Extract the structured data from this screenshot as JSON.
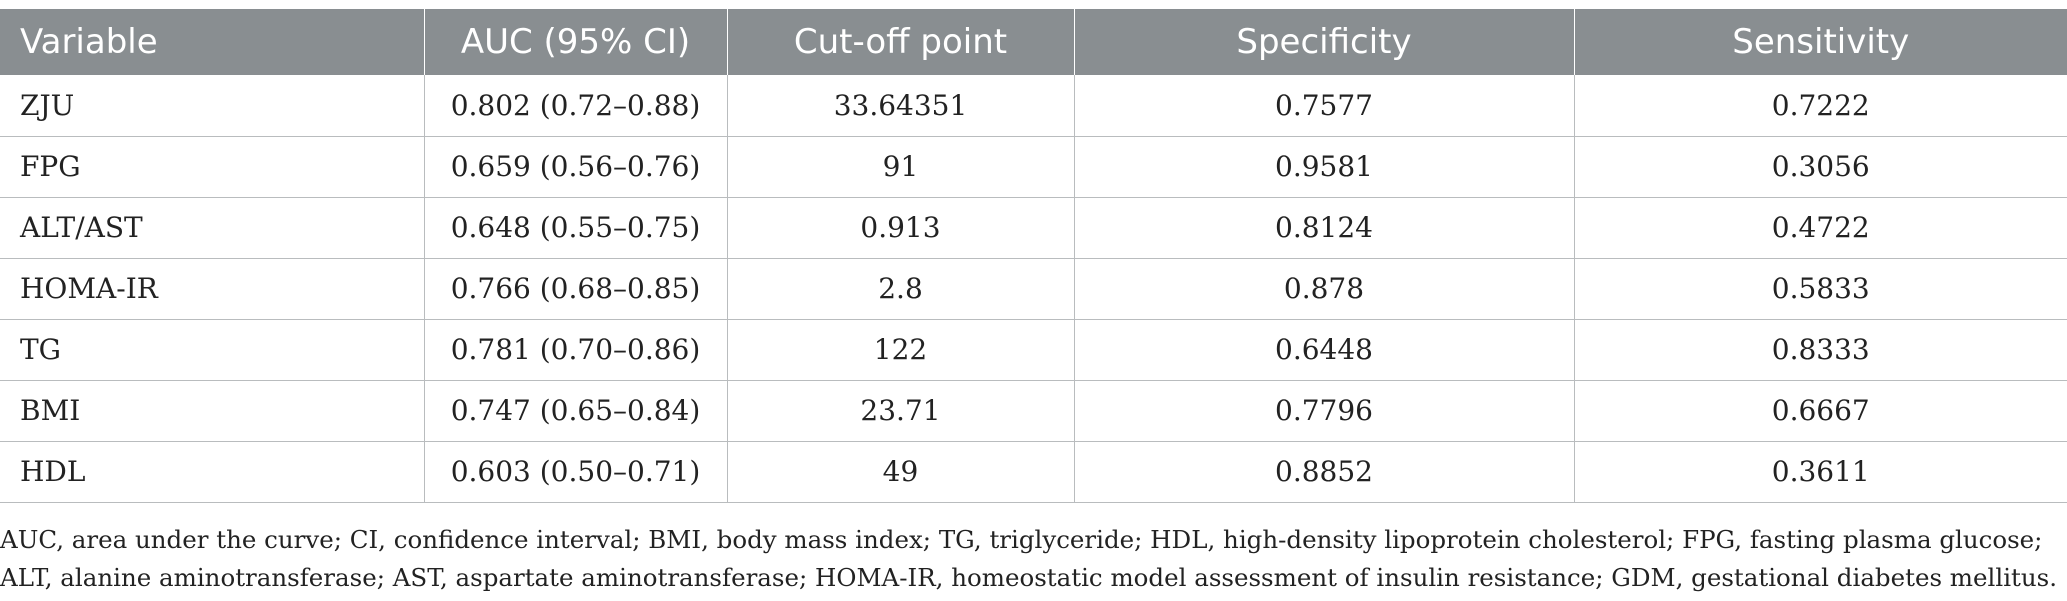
{
  "table": {
    "headers": [
      "Variable",
      "AUC (95% CI)",
      "Cut-off point",
      "Specificity",
      "Sensitivity"
    ],
    "rows": [
      [
        "ZJU",
        "0.802 (0.72–0.88)",
        "33.64351",
        "0.7577",
        "0.7222"
      ],
      [
        "FPG",
        "0.659 (0.56–0.76)",
        "91",
        "0.9581",
        "0.3056"
      ],
      [
        "ALT/AST",
        "0.648 (0.55–0.75)",
        "0.913",
        "0.8124",
        "0.4722"
      ],
      [
        "HOMA-IR",
        "0.766 (0.68–0.85)",
        "2.8",
        "0.878",
        "0.5833"
      ],
      [
        "TG",
        "0.781 (0.70–0.86)",
        "122",
        "0.6448",
        "0.8333"
      ],
      [
        "BMI",
        "0.747 (0.65–0.84)",
        "23.71",
        "0.7796",
        "0.6667"
      ],
      [
        "HDL",
        "0.603 (0.50–0.71)",
        "49",
        "0.8852",
        "0.3611"
      ]
    ]
  },
  "footnote": "AUC, area under the curve; CI, confidence interval; BMI, body mass index; TG, triglyceride; HDL, high-density lipoprotein cholesterol; FPG, fasting plasma glucose; ALT, alanine aminotransferase; AST, aspartate aminotransferase; HOMA-IR, homeostatic model assessment of insulin resistance; GDM, gestational diabetes mellitus.",
  "colors": {
    "header_bg": "#898e91",
    "header_text": "#ffffff",
    "grid": "#b9bcbe"
  }
}
